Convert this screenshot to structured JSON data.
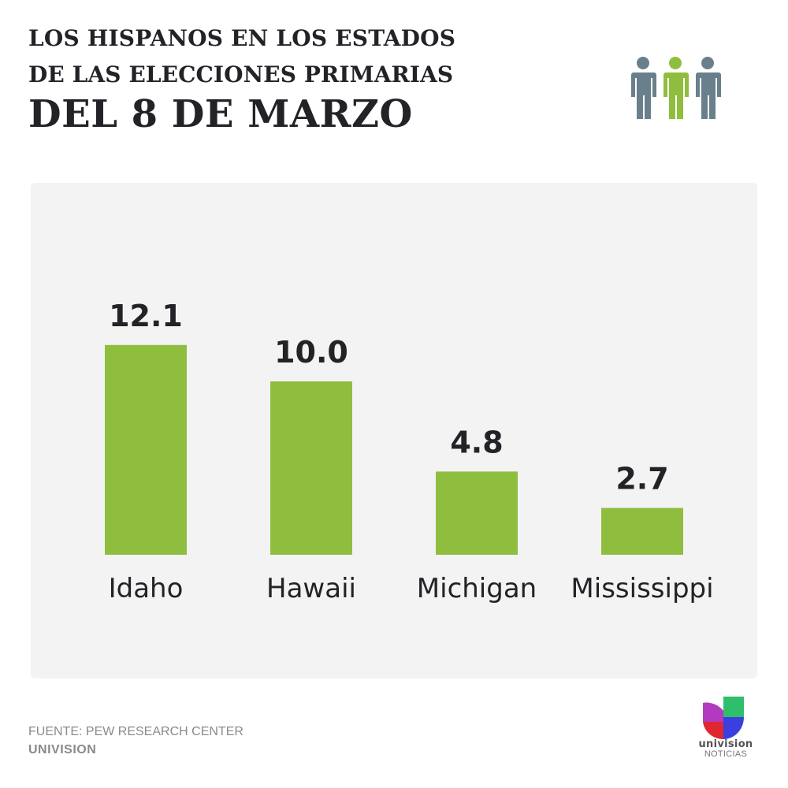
{
  "header": {
    "line1": "LOS HISPANOS EN LOS ESTADOS",
    "line2": "DE LAS ELECCIONES PRIMARIAS",
    "line3": "DEL 8 DE MARZO",
    "icon": "people-icon"
  },
  "colors": {
    "bar": "#8fbe3f",
    "person_gray": "#6a7f8c",
    "person_green": "#8fbe3f",
    "text_dark": "#222327",
    "panel_bg": "#f3f3f3"
  },
  "chart_data": {
    "type": "bar",
    "title": "LOS HISPANOS EN LOS ESTADOS DE LAS ELECCIONES PRIMARIAS DEL 8 DE MARZO",
    "categories": [
      "Idaho",
      "Hawaii",
      "Michigan",
      "Mississippi"
    ],
    "values": [
      12.1,
      10.0,
      4.8,
      2.7
    ],
    "labels": [
      "12.1",
      "10.0",
      "4.8",
      "2.7"
    ],
    "xlabel": "",
    "ylabel": "",
    "ylim": [
      0,
      12.1
    ],
    "grid": false,
    "legend": "none"
  },
  "footer": {
    "source": "FUENTE: PEW RESEARCH CENTER",
    "credit": "UNIVISION",
    "logo_word": "univision",
    "logo_sub": "NOTICIAS"
  }
}
